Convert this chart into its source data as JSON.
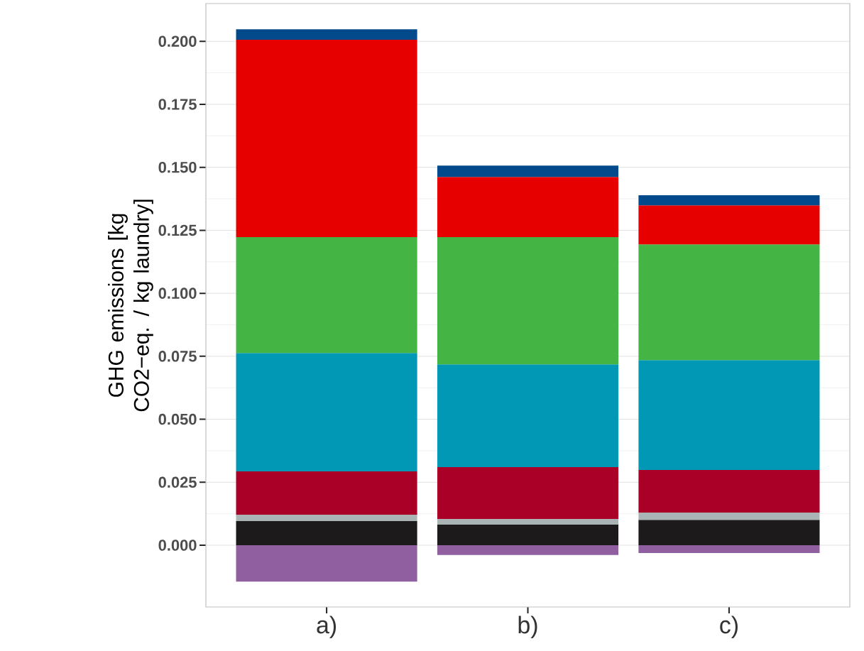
{
  "chart_data": {
    "type": "bar",
    "stacked": true,
    "ylabel": "GHG emissions [kg CO2−eq. / kg laundry]",
    "categories": [
      "a)",
      "b)",
      "c)"
    ],
    "series": [
      {
        "color": "#8f5fa0",
        "values": [
          -0.0144,
          -0.0039,
          -0.0031
        ]
      },
      {
        "color": "#1c1a1b",
        "values": [
          0.0096,
          0.0082,
          0.0101
        ]
      },
      {
        "color": "#aab4b4",
        "values": [
          0.0025,
          0.0022,
          0.0029
        ]
      },
      {
        "color": "#aa0028",
        "values": [
          0.0172,
          0.0206,
          0.0169
        ]
      },
      {
        "color": "#0098b4",
        "values": [
          0.047,
          0.0408,
          0.0436
        ]
      },
      {
        "color": "#44b444",
        "values": [
          0.046,
          0.0505,
          0.0459
        ]
      },
      {
        "color": "#e60000",
        "values": [
          0.0783,
          0.0239,
          0.0155
        ]
      },
      {
        "color": "#024a8c",
        "values": [
          0.0042,
          0.0045,
          0.004
        ]
      }
    ],
    "ylim": [
      -0.0245,
      0.215
    ],
    "yticks": [
      {
        "value": 0,
        "label": "0.000"
      },
      {
        "value": 0.025,
        "label": "0.025"
      },
      {
        "value": 0.05,
        "label": "0.050"
      },
      {
        "value": 0.075,
        "label": "0.075"
      },
      {
        "value": 0.1,
        "label": "0.100"
      },
      {
        "value": 0.125,
        "label": "0.125"
      },
      {
        "value": 0.15,
        "label": "0.150"
      },
      {
        "value": 0.175,
        "label": "0.175"
      },
      {
        "value": 0.2,
        "label": "0.200"
      }
    ],
    "grid": "y"
  }
}
